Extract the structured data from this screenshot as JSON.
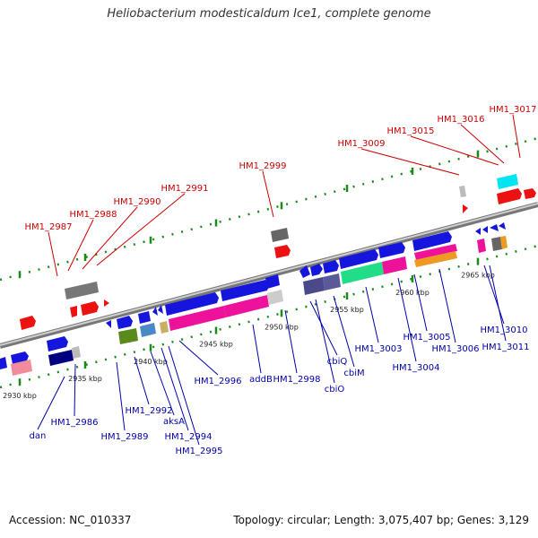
{
  "title": "Heliobacterium modesticaldum Ice1, complete genome",
  "accession": "Accession: NC_010337",
  "summary": "Topology: circular; Length: 3,075,407 bp; Genes: 3,129",
  "colors": {
    "upper_label": "#cc0000",
    "lower_label": "#0000aa",
    "backbone": "#9a9a9a",
    "ticks": "#1a8a1a"
  },
  "ticks": [
    {
      "kbp": 2930,
      "label": "2930 kbp"
    },
    {
      "kbp": 2935,
      "label": "2935 kbp"
    },
    {
      "kbp": 2940,
      "label": "2940 kbp"
    },
    {
      "kbp": 2945,
      "label": "2945 kbp"
    },
    {
      "kbp": 2950,
      "label": "2950 kbp"
    },
    {
      "kbp": 2955,
      "label": "2955 kbp"
    },
    {
      "kbp": 2960,
      "label": "2960 kbp"
    },
    {
      "kbp": 2965,
      "label": "2965 kbp"
    }
  ],
  "upper_labels": [
    {
      "text": "HM1_2987"
    },
    {
      "text": "HM1_2988"
    },
    {
      "text": "HM1_2990"
    },
    {
      "text": "HM1_2991"
    },
    {
      "text": "HM1_2999"
    },
    {
      "text": "HM1_3009"
    },
    {
      "text": "HM1_3015"
    },
    {
      "text": "HM1_3016"
    },
    {
      "text": "HM1_3017"
    }
  ],
  "lower_labels": [
    {
      "text": "dan"
    },
    {
      "text": "HM1_2986"
    },
    {
      "text": "HM1_2989"
    },
    {
      "text": "HM1_2992"
    },
    {
      "text": "aksA"
    },
    {
      "text": "HM1_2994"
    },
    {
      "text": "HM1_2995"
    },
    {
      "text": "HM1_2996"
    },
    {
      "text": "addB"
    },
    {
      "text": "HM1_2998"
    },
    {
      "text": "cbiQ"
    },
    {
      "text": "cbiO"
    },
    {
      "text": "cbiM"
    },
    {
      "text": "HM1_3003"
    },
    {
      "text": "HM1_3004"
    },
    {
      "text": "HM1_3005"
    },
    {
      "text": "HM1_3006"
    },
    {
      "text": "HM1_3010"
    },
    {
      "text": "HM1_3011"
    }
  ]
}
